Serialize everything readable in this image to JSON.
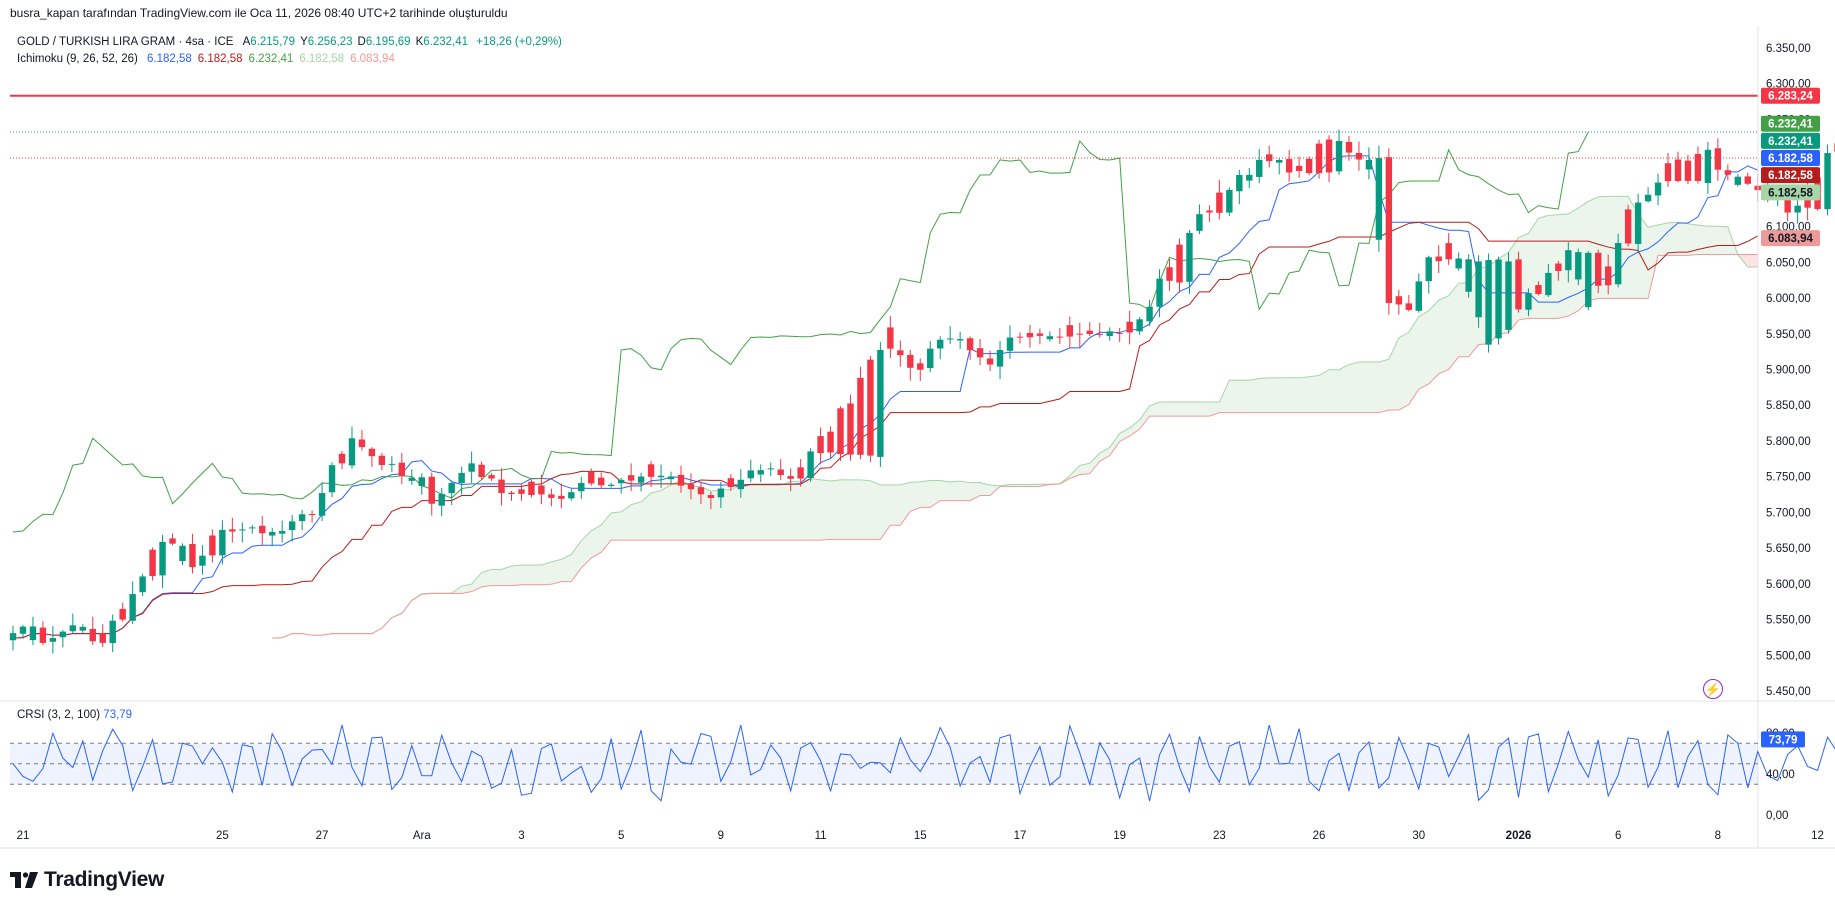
{
  "header": {
    "credit": "busra_kapan tarafından TradingView.com ile Oca 11, 2026 08:40 UTC+2 tarihinde oluşturuldu"
  },
  "legend": {
    "symbol": "GOLD / TURKISH LIRA GRAM · 4sa · ICE",
    "ohlc": [
      {
        "label": "A",
        "value": "6.215,79"
      },
      {
        "label": "Y",
        "value": "6.256,23"
      },
      {
        "label": "D",
        "value": "6.195,69"
      },
      {
        "label": "K",
        "value": "6.232,41"
      }
    ],
    "change": "+18,26 (+0,29%)",
    "ichimoku": {
      "label": "Ichimoku (9, 26, 52, 26)",
      "values": [
        "6.182,58",
        "6.182,58",
        "6.232,41",
        "6.182,58",
        "6.083,94"
      ]
    },
    "crsi": {
      "label": "CRSI (3, 2, 100)",
      "value": "73,79"
    }
  },
  "branding": {
    "logo_text": "TradingView"
  },
  "colors": {
    "up": "#089981",
    "down": "#f23645",
    "tenkan": "#2962ff",
    "kijun": "#b71c1c",
    "chikou": "#43a047",
    "span_a": "#a5d6a7",
    "span_b": "#ef9a9a",
    "kumo_up": "rgba(67,160,71,0.10)",
    "kumo_down": "rgba(244,67,54,0.14)",
    "crsi": "#2962ff",
    "resistance": "#f23645"
  },
  "chart_data": {
    "type": "candlestick",
    "symbol": "GOLD / TURKISH LIRA GRAM",
    "interval": "4sa",
    "y_range": [
      5450,
      6350
    ],
    "y_ticks": [
      "6.350,00",
      "6.300,00",
      "6.250,00",
      "6.200,00",
      "6.150,00",
      "6.100,00",
      "6.050,00",
      "6.000,00",
      "5.950,00",
      "5.900,00",
      "5.850,00",
      "5.800,00",
      "5.750,00",
      "5.700,00",
      "5.650,00",
      "5.600,00",
      "5.550,00",
      "5.500,00",
      "5.450,00"
    ],
    "x_ticks": [
      {
        "i": 1,
        "label": "21"
      },
      {
        "i": 21,
        "label": "25"
      },
      {
        "i": 31,
        "label": "27"
      },
      {
        "i": 41,
        "label": "Ara"
      },
      {
        "i": 51,
        "label": "3"
      },
      {
        "i": 61,
        "label": "5"
      },
      {
        "i": 71,
        "label": "9"
      },
      {
        "i": 81,
        "label": "11"
      },
      {
        "i": 91,
        "label": "15"
      },
      {
        "i": 101,
        "label": "17"
      },
      {
        "i": 111,
        "label": "19"
      },
      {
        "i": 121,
        "label": "23"
      },
      {
        "i": 131,
        "label": "26"
      },
      {
        "i": 141,
        "label": "30"
      },
      {
        "i": 151,
        "label": "2026"
      },
      {
        "i": 161,
        "label": "6"
      },
      {
        "i": 171,
        "label": "8"
      },
      {
        "i": 181,
        "label": "12"
      }
    ],
    "resistance_level": 6283.24,
    "price_labels": [
      {
        "value": "6.283,24",
        "price": 6283.24,
        "color": "#f23645"
      },
      {
        "value": "6.232,41",
        "price": 6244,
        "color": "#43a047"
      },
      {
        "value": "6.232,41",
        "price": 6220,
        "color": "#089981"
      },
      {
        "value": "6.182,58",
        "price": 6196,
        "color": "#2962ff"
      },
      {
        "value": "6.182,58",
        "price": 6172,
        "color": "#b71c1c"
      },
      {
        "value": "6.182,58",
        "price": 6148,
        "color": "#a5d6a7"
      },
      {
        "value": "6.083,94",
        "price": 6083.94,
        "color": "#ef9a9a"
      }
    ],
    "close_anchors": [
      [
        0,
        5540
      ],
      [
        2,
        5525
      ],
      [
        4,
        5520
      ],
      [
        6,
        5545
      ],
      [
        8,
        5515
      ],
      [
        10,
        5545
      ],
      [
        12,
        5580
      ],
      [
        14,
        5650
      ],
      [
        16,
        5660
      ],
      [
        18,
        5620
      ],
      [
        20,
        5660
      ],
      [
        22,
        5680
      ],
      [
        24,
        5670
      ],
      [
        26,
        5665
      ],
      [
        28,
        5680
      ],
      [
        30,
        5700
      ],
      [
        32,
        5760
      ],
      [
        34,
        5810
      ],
      [
        36,
        5780
      ],
      [
        38,
        5760
      ],
      [
        40,
        5740
      ],
      [
        42,
        5720
      ],
      [
        44,
        5740
      ],
      [
        46,
        5770
      ],
      [
        48,
        5740
      ],
      [
        50,
        5730
      ],
      [
        52,
        5740
      ],
      [
        54,
        5720
      ],
      [
        56,
        5730
      ],
      [
        58,
        5760
      ],
      [
        60,
        5740
      ],
      [
        62,
        5750
      ],
      [
        64,
        5760
      ],
      [
        66,
        5740
      ],
      [
        68,
        5730
      ],
      [
        70,
        5720
      ],
      [
        72,
        5740
      ],
      [
        74,
        5755
      ],
      [
        76,
        5760
      ],
      [
        78,
        5750
      ],
      [
        80,
        5780
      ],
      [
        82,
        5820
      ],
      [
        84,
        5860
      ],
      [
        86,
        5920
      ],
      [
        88,
        5950
      ],
      [
        90,
        5900
      ],
      [
        92,
        5930
      ],
      [
        94,
        5950
      ],
      [
        96,
        5920
      ],
      [
        98,
        5900
      ],
      [
        100,
        5940
      ],
      [
        102,
        5960
      ],
      [
        104,
        5950
      ],
      [
        106,
        5960
      ],
      [
        108,
        5950
      ],
      [
        110,
        5950
      ],
      [
        112,
        5960
      ],
      [
        114,
        5990
      ],
      [
        116,
        6050
      ],
      [
        118,
        6100
      ],
      [
        120,
        6120
      ],
      [
        122,
        6160
      ],
      [
        124,
        6170
      ],
      [
        126,
        6200
      ],
      [
        128,
        6180
      ],
      [
        130,
        6200
      ],
      [
        132,
        6230
      ],
      [
        134,
        6200
      ],
      [
        136,
        6180
      ],
      [
        138,
        6000
      ],
      [
        140,
        5990
      ],
      [
        142,
        6050
      ],
      [
        144,
        6070
      ],
      [
        146,
        6000
      ],
      [
        148,
        5930
      ],
      [
        150,
        5960
      ],
      [
        152,
        6000
      ],
      [
        154,
        6040
      ],
      [
        156,
        6060
      ],
      [
        158,
        5990
      ],
      [
        160,
        6040
      ],
      [
        162,
        6120
      ],
      [
        164,
        6150
      ],
      [
        166,
        6180
      ],
      [
        168,
        6190
      ],
      [
        170,
        6200
      ],
      [
        172,
        6170
      ],
      [
        174,
        6160
      ],
      [
        176,
        6140
      ],
      [
        178,
        6120
      ],
      [
        180,
        6150
      ],
      [
        182,
        6200
      ],
      [
        184,
        6232.41
      ]
    ],
    "crsi": {
      "range": [
        0,
        80
      ],
      "ticks": [
        "80,00",
        "40,00",
        "0,00"
      ],
      "band": [
        30,
        70
      ],
      "midline": 50,
      "last": 73.79
    }
  }
}
